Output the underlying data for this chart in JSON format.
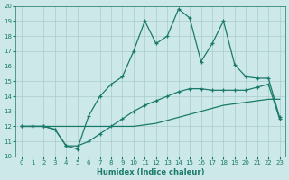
{
  "xlabel": "Humidex (Indice chaleur)",
  "background_color": "#cce8e8",
  "grid_color": "#aacccc",
  "line_color": "#1a7a6a",
  "xlim": [
    -0.5,
    23.5
  ],
  "ylim": [
    10,
    20
  ],
  "xticks": [
    0,
    1,
    2,
    3,
    4,
    5,
    6,
    7,
    8,
    9,
    10,
    11,
    12,
    13,
    14,
    15,
    16,
    17,
    18,
    19,
    20,
    21,
    22,
    23
  ],
  "yticks": [
    10,
    11,
    12,
    13,
    14,
    15,
    16,
    17,
    18,
    19,
    20
  ],
  "line1_x": [
    0,
    1,
    2,
    3,
    4,
    5,
    6,
    7,
    8,
    9,
    10,
    11,
    12,
    13,
    14,
    15,
    16,
    17,
    18,
    19,
    20,
    21,
    22,
    23
  ],
  "line1_y": [
    12.0,
    12.0,
    12.0,
    12.0,
    12.0,
    12.0,
    12.0,
    12.0,
    12.0,
    12.0,
    12.0,
    12.1,
    12.2,
    12.4,
    12.6,
    12.8,
    13.0,
    13.2,
    13.4,
    13.5,
    13.6,
    13.7,
    13.8,
    13.8
  ],
  "line2_x": [
    0,
    1,
    2,
    3,
    4,
    5,
    6,
    7,
    8,
    9,
    10,
    11,
    12,
    13,
    14,
    15,
    16,
    17,
    18,
    19,
    20,
    21,
    22,
    23
  ],
  "line2_y": [
    12.0,
    12.0,
    12.0,
    11.8,
    10.7,
    10.7,
    11.0,
    11.5,
    12.0,
    12.5,
    13.0,
    13.4,
    13.7,
    14.0,
    14.3,
    14.5,
    14.5,
    14.4,
    14.4,
    14.4,
    14.4,
    14.6,
    14.8,
    12.5
  ],
  "line3_x": [
    0,
    1,
    2,
    3,
    4,
    5,
    6,
    7,
    8,
    9,
    10,
    11,
    12,
    13,
    14,
    15,
    16,
    17,
    18,
    19,
    20,
    21,
    22,
    23
  ],
  "line3_y": [
    12.0,
    12.0,
    12.0,
    11.8,
    10.7,
    10.5,
    12.7,
    14.0,
    14.8,
    15.3,
    17.0,
    19.0,
    17.5,
    18.0,
    19.8,
    19.2,
    16.3,
    17.5,
    19.0,
    16.1,
    15.3,
    15.2,
    15.2,
    12.6
  ]
}
